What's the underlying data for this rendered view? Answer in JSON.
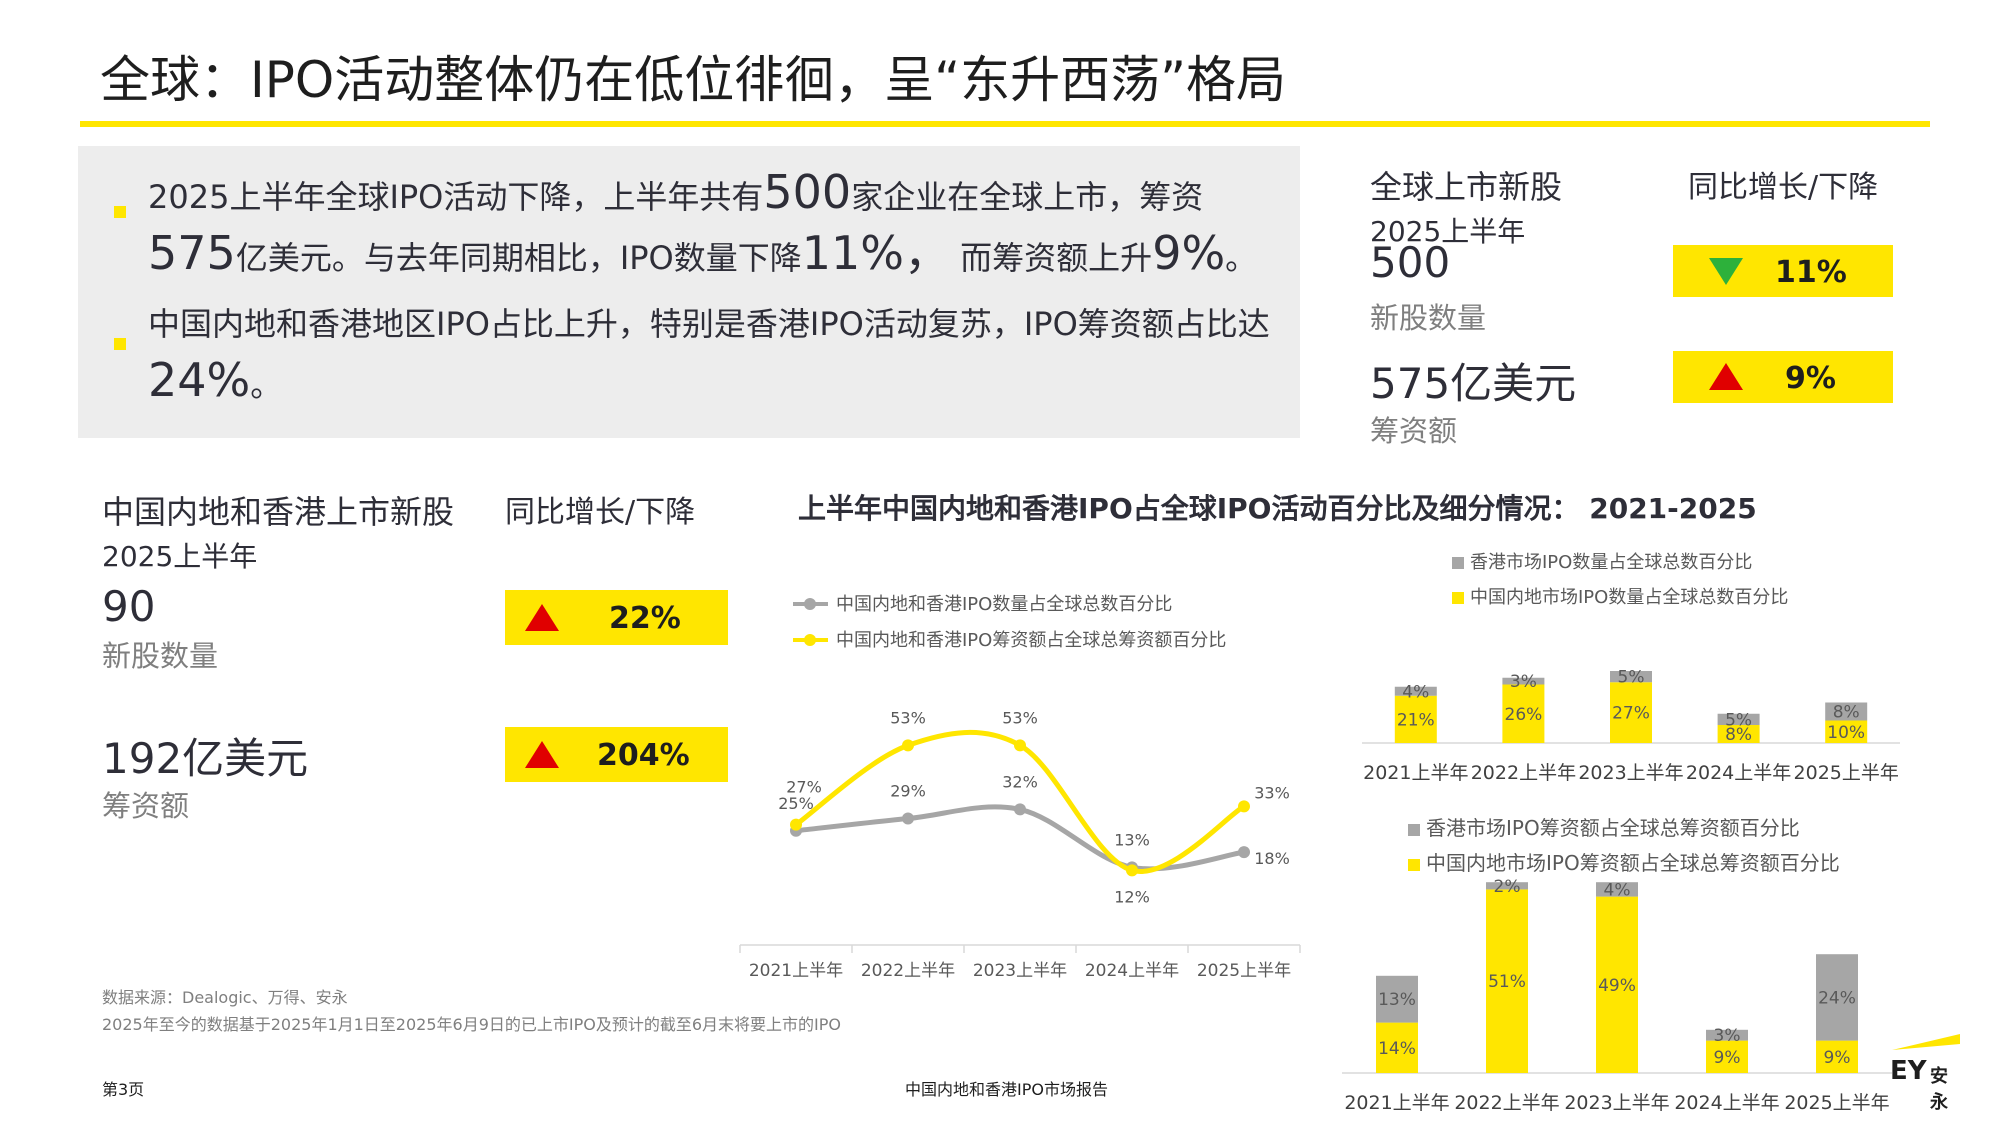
{
  "title": "全球：IPO活动整体仍在低位徘徊，呈“东升西荡”格局",
  "bullets": [
    {
      "parts": [
        "2025上半年全球IPO活动下降，上半年共有",
        "500",
        "家企业在全球上市，筹资",
        "575",
        "亿美元。与去年同期相比，IPO数量下降",
        "11%，",
        " 而筹资额上升",
        "9%",
        "。"
      ]
    },
    {
      "parts": [
        "中国内地和香港地区IPO占比上升，特别是香港IPO活动复苏，IPO筹资额占比达",
        "24%",
        "。"
      ]
    }
  ],
  "global": {
    "heading": "全球上市新股",
    "period": "2025上半年",
    "yoy_heading": "同比增长/下降",
    "count_value": "500",
    "count_label": "新股数量",
    "count_change": "11%",
    "count_direction": "down",
    "proceeds_value": "575亿美元",
    "proceeds_label": "筹资额",
    "proceeds_change": "9%",
    "proceeds_direction": "up"
  },
  "china": {
    "heading": "中国内地和香港上市新股",
    "period": "2025上半年",
    "yoy_heading": "同比增长/下降",
    "count_value": "90",
    "count_label": "新股数量",
    "count_change": "22%",
    "count_direction": "up",
    "proceeds_value": "192亿美元",
    "proceeds_label": "筹资额",
    "proceeds_change": "204%",
    "proceeds_direction": "up"
  },
  "chart_section_title": "上半年中国内地和香港IPO占全球IPO活动百分比及细分情况： 2021-2025",
  "colors": {
    "yellow": "#ffe600",
    "grey": "#a6a6a6",
    "red": "#e00000",
    "green": "#2db13b",
    "text": "#2e2e38"
  },
  "chart_data": [
    {
      "type": "line",
      "categories": [
        "2021上半年",
        "2022上半年",
        "2023上半年",
        "2024上半年",
        "2025上半年"
      ],
      "series": [
        {
          "name": "中国内地和香港IPO数量占全球总数百分比",
          "color": "#a6a6a6",
          "values": [
            25,
            29,
            32,
            13,
            18
          ],
          "labels": [
            "25%",
            "29%",
            "32%",
            "13%",
            "18%"
          ]
        },
        {
          "name": "中国内地和香港IPO筹资额占全球总筹资额百分比",
          "color": "#ffe600",
          "values": [
            27,
            53,
            53,
            12,
            33
          ],
          "labels": [
            "27%",
            "53%",
            "53%",
            "12%",
            "33%"
          ]
        }
      ],
      "legend": "top-left",
      "grid": false
    },
    {
      "type": "bar",
      "stacked": true,
      "categories": [
        "2021上半年",
        "2022上半年",
        "2023上半年",
        "2024上半年",
        "2025上半年"
      ],
      "series": [
        {
          "name": "中国内地市场IPO数量占全球总数百分比",
          "color": "#ffe600",
          "values": [
            21,
            26,
            27,
            8,
            10
          ],
          "labels": [
            "21%",
            "26%",
            "27%",
            "8%",
            "10%"
          ]
        },
        {
          "name": "香港市场IPO数量占全球总数百分比",
          "color": "#a6a6a6",
          "values": [
            4,
            3,
            5,
            5,
            8
          ],
          "labels": [
            "4%",
            "3%",
            "5%",
            "5%",
            "8%"
          ]
        }
      ],
      "legend": "top",
      "grid": false
    },
    {
      "type": "bar",
      "stacked": true,
      "categories": [
        "2021上半年",
        "2022上半年",
        "2023上半年",
        "2024上半年",
        "2025上半年"
      ],
      "series": [
        {
          "name": "中国内地市场IPO筹资额占全球总筹资额百分比",
          "color": "#ffe600",
          "values": [
            14,
            51,
            49,
            9,
            9
          ],
          "labels": [
            "14%",
            "51%",
            "49%",
            "9%",
            "9%"
          ]
        },
        {
          "name": "香港市场IPO筹资额占全球总筹资额百分比",
          "color": "#a6a6a6",
          "values": [
            13,
            2,
            4,
            3,
            24
          ],
          "labels": [
            "13%",
            "2%",
            "4%",
            "3%",
            "24%"
          ]
        }
      ],
      "legend": "top",
      "grid": false
    }
  ],
  "source": "数据来源：Dealogic、万得、安永",
  "note": "2025年至今的数据基于2025年1月1日至2025年6月9日的已上市IPO及预计的截至6月末将要上市的IPO",
  "page_number": "第3页",
  "footer_center": "中国内地和香港IPO市场报告",
  "logo": {
    "mark": "EY",
    "text": "安永"
  }
}
